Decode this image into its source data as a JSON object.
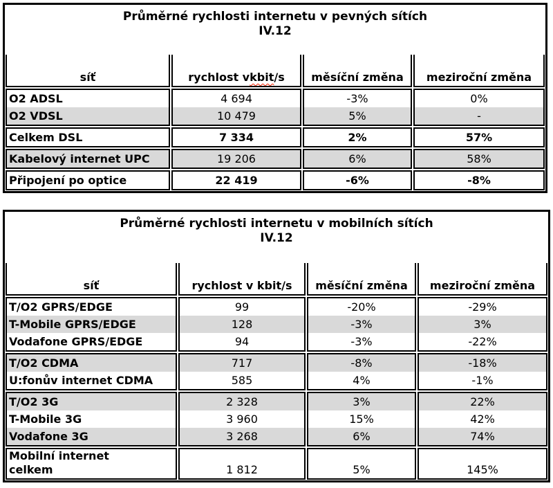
{
  "colors": {
    "border": "#000000",
    "row_shade": "#d9d9d9",
    "text": "#000000",
    "spellcheck_underline": "#ff2200",
    "background": "#ffffff"
  },
  "tables": [
    {
      "id": "fixed-networks",
      "title": "Průměrné rychlosti internetu v pevných sítích",
      "period": "IV.12",
      "columns": [
        {
          "label": "síť"
        },
        {
          "label": "rychlost v kbit/s",
          "parts": {
            "pre": "rychlost v ",
            "wavy": "kbit",
            "post": "/s"
          }
        },
        {
          "label": "měsíční změna"
        },
        {
          "label": "meziroční změna"
        }
      ],
      "groups": [
        {
          "values_bold": false,
          "rows": [
            {
              "label": "O2 ADSL",
              "speed": "4 694",
              "monthly": "-3%",
              "yearly": "0%",
              "shaded": false
            },
            {
              "label": "O2 VDSL",
              "speed": "10 479",
              "monthly": "5%",
              "yearly": "-",
              "shaded": true
            }
          ]
        },
        {
          "values_bold": true,
          "rows": [
            {
              "label": "Celkem DSL",
              "speed": "7 334",
              "monthly": "2%",
              "yearly": "57%",
              "shaded": false
            }
          ]
        },
        {
          "values_bold": false,
          "rows": [
            {
              "label": "Kabelový internet UPC",
              "speed": "19 206",
              "monthly": "6%",
              "yearly": "58%",
              "shaded": true
            }
          ]
        },
        {
          "values_bold": true,
          "rows": [
            {
              "label": "Připojení po optice",
              "speed": "22 419",
              "monthly": "-6%",
              "yearly": "-8%",
              "shaded": false
            }
          ]
        }
      ]
    },
    {
      "id": "mobile-networks",
      "title": "Průměrné rychlosti internetu v mobilních sítích",
      "period": "IV.12",
      "columns": [
        {
          "label": "síť"
        },
        {
          "label": "rychlost v kbit/s"
        },
        {
          "label": "měsíční změna"
        },
        {
          "label": "meziroční změna"
        }
      ],
      "groups": [
        {
          "values_bold": false,
          "rows": [
            {
              "label": "T/O2 GPRS/EDGE",
              "speed": "99",
              "monthly": "-20%",
              "yearly": "-29%",
              "shaded": false
            },
            {
              "label": "T-Mobile GPRS/EDGE",
              "speed": "128",
              "monthly": "-3%",
              "yearly": "3%",
              "shaded": true
            },
            {
              "label": "Vodafone GPRS/EDGE",
              "speed": "94",
              "monthly": "-3%",
              "yearly": "-22%",
              "shaded": false
            }
          ]
        },
        {
          "values_bold": false,
          "rows": [
            {
              "label": "T/O2 CDMA",
              "speed": "717",
              "monthly": "-8%",
              "yearly": "-18%",
              "shaded": true
            },
            {
              "label": "U:fonův internet CDMA",
              "speed": "585",
              "monthly": "4%",
              "yearly": "-1%",
              "shaded": false
            }
          ]
        },
        {
          "values_bold": false,
          "rows": [
            {
              "label": "T/O2 3G",
              "speed": "2 328",
              "monthly": "3%",
              "yearly": "22%",
              "shaded": true
            },
            {
              "label": "T-Mobile 3G",
              "speed": "3 960",
              "monthly": "15%",
              "yearly": "42%",
              "shaded": false
            },
            {
              "label": "Vodafone 3G",
              "speed": "3 268",
              "monthly": "6%",
              "yearly": "74%",
              "shaded": true
            }
          ]
        },
        {
          "values_bold": false,
          "rows": [
            {
              "label": "Mobilní internet\ncelkem",
              "speed": "1 812",
              "monthly": "5%",
              "yearly": "145%",
              "shaded": false
            }
          ]
        }
      ]
    }
  ],
  "chart_data": [
    {
      "type": "table",
      "title": "Průměrné rychlosti internetu v pevných sítích IV.12",
      "columns": [
        "síť",
        "rychlost v kbit/s",
        "měsíční změna",
        "meziroční změna"
      ],
      "rows": [
        [
          "O2 ADSL",
          4694,
          "-3%",
          "0%"
        ],
        [
          "O2 VDSL",
          10479,
          "5%",
          "-"
        ],
        [
          "Celkem DSL",
          7334,
          "2%",
          "57%"
        ],
        [
          "Kabelový internet UPC",
          19206,
          "6%",
          "58%"
        ],
        [
          "Připojení po optice",
          22419,
          "-6%",
          "-8%"
        ]
      ]
    },
    {
      "type": "table",
      "title": "Průměrné rychlosti internetu v mobilních sítích IV.12",
      "columns": [
        "síť",
        "rychlost v kbit/s",
        "měsíční změna",
        "meziroční změna"
      ],
      "rows": [
        [
          "T/O2 GPRS/EDGE",
          99,
          "-20%",
          "-29%"
        ],
        [
          "T-Mobile GPRS/EDGE",
          128,
          "-3%",
          "3%"
        ],
        [
          "Vodafone GPRS/EDGE",
          94,
          "-3%",
          "-22%"
        ],
        [
          "T/O2 CDMA",
          717,
          "-8%",
          "-18%"
        ],
        [
          "U:fonův internet CDMA",
          585,
          "4%",
          "-1%"
        ],
        [
          "T/O2 3G",
          2328,
          "3%",
          "22%"
        ],
        [
          "T-Mobile 3G",
          3960,
          "15%",
          "42%"
        ],
        [
          "Vodafone 3G",
          3268,
          "6%",
          "74%"
        ],
        [
          "Mobilní internet celkem",
          1812,
          "5%",
          "145%"
        ]
      ]
    }
  ]
}
